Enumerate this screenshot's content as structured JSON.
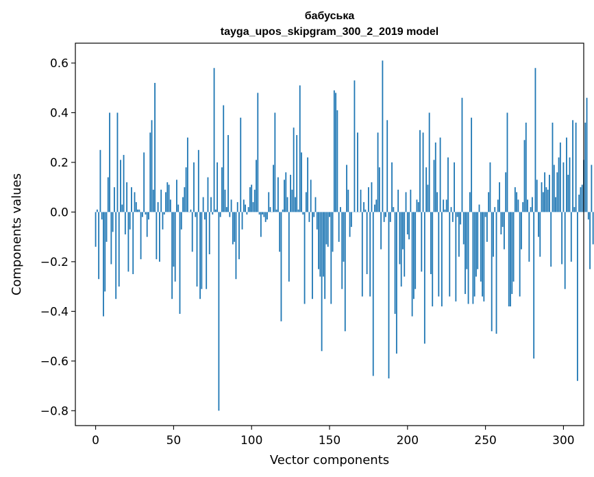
{
  "chart_data": {
    "type": "bar",
    "title_line1": "бабуська",
    "title_line2": "tayga_upos_skipgram_300_2_2019 model",
    "xlabel": "Vector components",
    "ylabel": "Components values",
    "xlim": [
      -13,
      313
    ],
    "ylim": [
      -0.86,
      0.68
    ],
    "xticks": [
      0,
      50,
      100,
      150,
      200,
      250,
      300
    ],
    "xtick_labels": [
      "0",
      "50",
      "100",
      "150",
      "200",
      "250",
      "300"
    ],
    "yticks": [
      -0.8,
      -0.6,
      -0.4,
      -0.2,
      0.0,
      0.2,
      0.4,
      0.6
    ],
    "ytick_labels": [
      "−0.8",
      "−0.6",
      "−0.4",
      "−0.2",
      "0.0",
      "0.2",
      "0.4",
      "0.6"
    ],
    "bar_color": "#1f77b4",
    "values": [
      -0.14,
      0.01,
      -0.27,
      0.25,
      -0.03,
      -0.42,
      -0.32,
      -0.12,
      0.14,
      0.4,
      -0.21,
      -0.08,
      0.1,
      -0.35,
      0.4,
      -0.3,
      0.21,
      0.03,
      0.23,
      -0.09,
      0.12,
      -0.24,
      -0.07,
      0.1,
      -0.25,
      0.08,
      0.04,
      0.01,
      0.01,
      -0.19,
      -0.02,
      0.24,
      -0.01,
      -0.1,
      -0.03,
      0.32,
      0.37,
      0.09,
      0.52,
      -0.19,
      0.04,
      -0.2,
      0.09,
      -0.07,
      -0.01,
      0.08,
      0.12,
      0.11,
      0.05,
      -0.35,
      -0.22,
      -0.28,
      0.13,
      0.03,
      -0.41,
      -0.07,
      0.06,
      0.1,
      0.18,
      0.3,
      0.0,
      0.01,
      -0.16,
      0.2,
      -0.02,
      -0.3,
      0.25,
      -0.35,
      -0.31,
      0.06,
      -0.03,
      -0.31,
      0.14,
      -0.17,
      0.06,
      -0.01,
      0.58,
      0.01,
      0.2,
      -0.8,
      -0.02,
      0.18,
      0.43,
      0.09,
      0.02,
      0.31,
      -0.02,
      0.05,
      -0.13,
      -0.12,
      -0.27,
      0.04,
      -0.19,
      0.38,
      -0.07,
      0.05,
      0.03,
      -0.01,
      0.02,
      0.1,
      0.11,
      0.04,
      0.09,
      0.21,
      0.48,
      -0.01,
      -0.1,
      -0.01,
      -0.02,
      -0.04,
      -0.03,
      0.08,
      0.02,
      0.0,
      0.19,
      0.4,
      0.01,
      0.14,
      -0.16,
      -0.44,
      0.01,
      0.13,
      0.16,
      0.06,
      -0.28,
      0.15,
      0.09,
      0.34,
      0.06,
      0.31,
      0.01,
      0.51,
      0.24,
      -0.01,
      -0.37,
      0.08,
      0.22,
      -0.04,
      0.13,
      -0.35,
      -0.02,
      0.06,
      -0.07,
      -0.23,
      -0.26,
      -0.56,
      -0.26,
      -0.35,
      -0.13,
      -0.14,
      -0.02,
      -0.37,
      -0.16,
      0.49,
      0.48,
      0.41,
      -0.12,
      0.02,
      -0.31,
      -0.2,
      -0.48,
      0.19,
      0.09,
      -0.1,
      -0.06,
      0.0,
      0.53,
      0.0,
      0.32,
      0.0,
      0.09,
      -0.34,
      0.04,
      0.01,
      -0.25,
      0.1,
      -0.34,
      0.12,
      -0.66,
      0.03,
      0.05,
      0.32,
      0.18,
      -0.15,
      0.61,
      -0.04,
      -0.02,
      0.37,
      -0.67,
      -0.04,
      0.2,
      0.02,
      -0.41,
      -0.57,
      0.09,
      -0.21,
      -0.3,
      -0.15,
      -0.26,
      0.08,
      -0.09,
      -0.11,
      0.09,
      -0.42,
      -0.35,
      -0.31,
      0.05,
      0.04,
      0.33,
      -0.24,
      0.32,
      -0.53,
      0.18,
      0.11,
      0.4,
      -0.25,
      -0.38,
      0.21,
      0.28,
      0.08,
      -0.34,
      0.3,
      -0.38,
      0.05,
      0.01,
      0.05,
      0.22,
      -0.34,
      0.02,
      -0.04,
      0.2,
      -0.36,
      -0.02,
      -0.18,
      -0.05,
      0.46,
      -0.13,
      -0.33,
      -0.23,
      -0.37,
      0.08,
      0.38,
      -0.37,
      -0.34,
      -0.26,
      -0.23,
      0.03,
      -0.28,
      -0.34,
      -0.36,
      -0.02,
      -0.12,
      0.08,
      0.2,
      -0.48,
      -0.18,
      0.02,
      -0.49,
      0.05,
      0.12,
      -0.09,
      -0.06,
      -0.15,
      0.16,
      0.4,
      -0.38,
      -0.38,
      -0.33,
      -0.28,
      0.1,
      0.08,
      0.05,
      -0.34,
      -0.15,
      0.04,
      0.29,
      0.36,
      0.05,
      -0.2,
      0.02,
      0.06,
      -0.59,
      0.58,
      0.13,
      -0.1,
      -0.18,
      0.12,
      0.08,
      0.16,
      0.1,
      0.09,
      0.15,
      -0.22,
      0.36,
      0.19,
      0.06,
      0.16,
      0.22,
      0.28,
      -0.21,
      0.2,
      -0.31,
      0.3,
      0.15,
      0.22,
      -0.2,
      0.37,
      0.02,
      0.36,
      -0.68,
      0.07,
      0.1,
      0.11,
      0.21,
      0.36,
      0.46,
      -0.03,
      -0.23,
      0.19,
      -0.13
    ]
  }
}
